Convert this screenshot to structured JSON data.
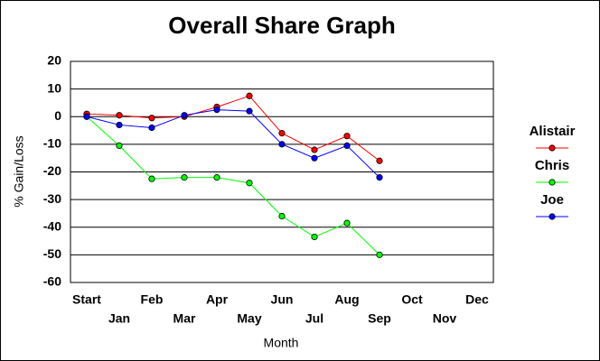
{
  "chart_data": {
    "type": "line",
    "title": "Overall Share Graph",
    "x_label": "Month",
    "y_label": "% Gain/Loss",
    "categories": [
      "Start",
      "Jan",
      "Feb",
      "Mar",
      "Apr",
      "May",
      "Jun",
      "Jul",
      "Aug",
      "Sep",
      "Oct",
      "Nov",
      "Dec"
    ],
    "series": [
      {
        "name": "Alistair",
        "color": "#ff0000",
        "values": [
          1,
          0.5,
          -0.5,
          0,
          3.5,
          7.5,
          -6,
          -12,
          -7,
          -16,
          null,
          null,
          null
        ]
      },
      {
        "name": "Chris",
        "color": "#00ff00",
        "values": [
          0,
          -10.5,
          -22.5,
          -22,
          -22,
          -24,
          -36,
          -43.5,
          -38.5,
          -50,
          null,
          null,
          null
        ]
      },
      {
        "name": "Joe",
        "color": "#0000ff",
        "values": [
          0,
          -3,
          -4,
          0.5,
          2.5,
          2,
          -10,
          -15,
          -10.5,
          -22,
          null,
          null,
          null
        ]
      }
    ],
    "ylim": [
      -60,
      20
    ],
    "yticks": [
      20,
      10,
      0,
      -10,
      -20,
      -30,
      -40,
      -50,
      -60
    ],
    "grid": true,
    "legend": "right"
  }
}
